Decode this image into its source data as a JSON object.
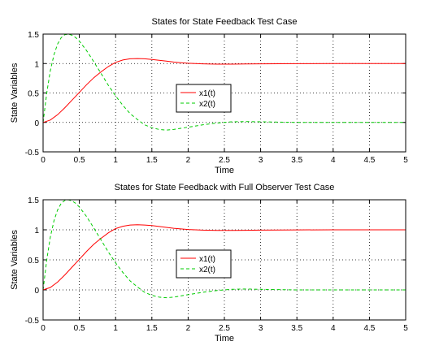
{
  "chart_data": [
    {
      "type": "line",
      "title": "States for State Feedback Test Case",
      "xlabel": "Time",
      "ylabel": "State Variables",
      "xlim": [
        0,
        5
      ],
      "ylim": [
        -0.5,
        1.5
      ],
      "xticks": [
        0,
        0.5,
        1,
        1.5,
        2,
        2.5,
        3,
        3.5,
        4,
        4.5,
        5
      ],
      "xtick_labels": [
        "0",
        "0.5",
        "1",
        "1.5",
        "2",
        "2.5",
        "3",
        "3.5",
        "4",
        "4.5",
        "5"
      ],
      "yticks": [
        -0.5,
        0,
        0.5,
        1,
        1.5
      ],
      "ytick_labels": [
        "-0.5",
        "0",
        "0.5",
        "1",
        "1.5"
      ],
      "grid": true,
      "legend_position": "center",
      "series": [
        {
          "name": "x1(t)",
          "color": "#ff0000",
          "style": "solid",
          "x": [
            0,
            0.1,
            0.2,
            0.3,
            0.4,
            0.5,
            0.6,
            0.7,
            0.8,
            0.9,
            1.0,
            1.1,
            1.2,
            1.3,
            1.4,
            1.5,
            1.6,
            1.7,
            1.8,
            1.9,
            2.0,
            2.2,
            2.4,
            2.6,
            2.8,
            3.0,
            3.5,
            4.0,
            4.5,
            5.0
          ],
          "y": [
            0,
            0.04,
            0.13,
            0.25,
            0.38,
            0.51,
            0.64,
            0.76,
            0.86,
            0.95,
            1.02,
            1.06,
            1.08,
            1.085,
            1.08,
            1.07,
            1.055,
            1.04,
            1.025,
            1.015,
            1.005,
            0.995,
            0.99,
            0.99,
            0.992,
            0.995,
            0.998,
            1.0,
            1.0,
            1.0
          ]
        },
        {
          "name": "x2(t)",
          "color": "#00cc00",
          "style": "dashed",
          "x": [
            0,
            0.05,
            0.1,
            0.15,
            0.2,
            0.25,
            0.3,
            0.35,
            0.4,
            0.45,
            0.5,
            0.6,
            0.7,
            0.8,
            0.9,
            1.0,
            1.1,
            1.2,
            1.3,
            1.4,
            1.5,
            1.6,
            1.7,
            1.8,
            1.9,
            2.0,
            2.2,
            2.4,
            2.6,
            2.8,
            3.0,
            3.5,
            4.0,
            4.5,
            5.0
          ],
          "y": [
            0,
            0.5,
            0.88,
            1.15,
            1.33,
            1.44,
            1.49,
            1.5,
            1.48,
            1.44,
            1.38,
            1.22,
            1.03,
            0.83,
            0.63,
            0.45,
            0.29,
            0.15,
            0.05,
            -0.04,
            -0.09,
            -0.12,
            -0.13,
            -0.12,
            -0.1,
            -0.08,
            -0.04,
            -0.01,
            0.01,
            0.015,
            0.01,
            0.0,
            0.0,
            0.0,
            0.0
          ]
        }
      ]
    },
    {
      "type": "line",
      "title": "States for State Feedback with Full Observer Test Case",
      "xlabel": "Time",
      "ylabel": "State Variables",
      "xlim": [
        0,
        5
      ],
      "ylim": [
        -0.5,
        1.5
      ],
      "xticks": [
        0,
        0.5,
        1,
        1.5,
        2,
        2.5,
        3,
        3.5,
        4,
        4.5,
        5
      ],
      "xtick_labels": [
        "0",
        "0.5",
        "1",
        "1.5",
        "2",
        "2.5",
        "3",
        "3.5",
        "4",
        "4.5",
        "5"
      ],
      "yticks": [
        -0.5,
        0,
        0.5,
        1,
        1.5
      ],
      "ytick_labels": [
        "-0.5",
        "0",
        "0.5",
        "1",
        "1.5"
      ],
      "grid": true,
      "legend_position": "center",
      "series": [
        {
          "name": "x1(t)",
          "color": "#ff0000",
          "style": "solid",
          "x": [
            0,
            0.1,
            0.2,
            0.3,
            0.4,
            0.5,
            0.6,
            0.7,
            0.8,
            0.9,
            1.0,
            1.1,
            1.2,
            1.3,
            1.4,
            1.5,
            1.6,
            1.7,
            1.8,
            1.9,
            2.0,
            2.2,
            2.4,
            2.6,
            2.8,
            3.0,
            3.5,
            4.0,
            4.5,
            5.0
          ],
          "y": [
            0,
            0.04,
            0.13,
            0.25,
            0.38,
            0.51,
            0.64,
            0.76,
            0.86,
            0.95,
            1.02,
            1.06,
            1.08,
            1.085,
            1.08,
            1.07,
            1.055,
            1.04,
            1.025,
            1.015,
            1.005,
            0.995,
            0.99,
            0.99,
            0.992,
            0.995,
            0.998,
            1.0,
            1.0,
            1.0
          ]
        },
        {
          "name": "x2(t)",
          "color": "#00cc00",
          "style": "dashed",
          "x": [
            0,
            0.05,
            0.1,
            0.15,
            0.2,
            0.25,
            0.3,
            0.35,
            0.4,
            0.45,
            0.5,
            0.6,
            0.7,
            0.8,
            0.9,
            1.0,
            1.1,
            1.2,
            1.3,
            1.4,
            1.5,
            1.6,
            1.7,
            1.8,
            1.9,
            2.0,
            2.2,
            2.4,
            2.6,
            2.8,
            3.0,
            3.5,
            4.0,
            4.5,
            5.0
          ],
          "y": [
            0,
            0.5,
            0.88,
            1.15,
            1.33,
            1.44,
            1.49,
            1.5,
            1.48,
            1.44,
            1.38,
            1.22,
            1.03,
            0.83,
            0.63,
            0.45,
            0.29,
            0.15,
            0.05,
            -0.04,
            -0.09,
            -0.12,
            -0.13,
            -0.12,
            -0.1,
            -0.08,
            -0.04,
            -0.01,
            0.01,
            0.015,
            0.01,
            0.0,
            0.0,
            0.0,
            0.0
          ]
        }
      ]
    }
  ]
}
